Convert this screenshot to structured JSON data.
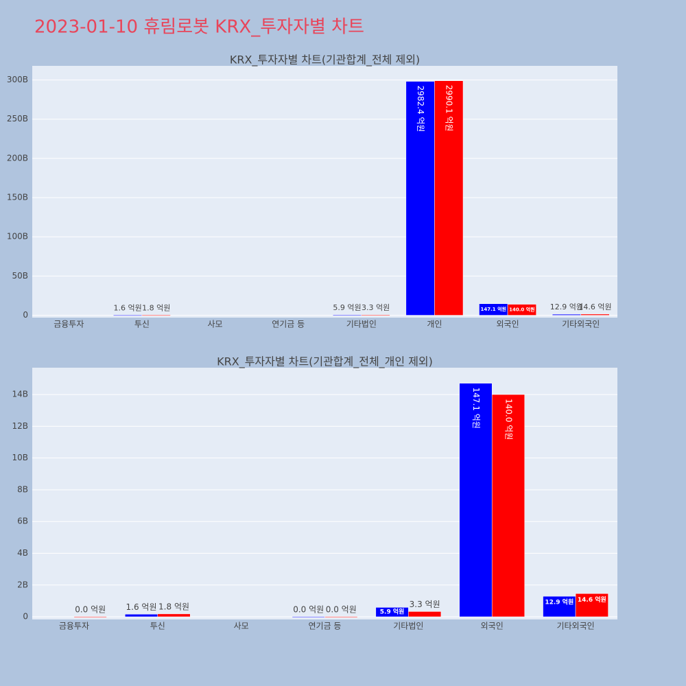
{
  "title": "2023-01-10 휴림로봇 KRX_투자자별 차트",
  "chart_data": [
    {
      "type": "bar",
      "title": "KRX_투자자별 차트(기관합계_전체 제외)",
      "categories": [
        "금융투자",
        "투신",
        "사모",
        "연기금 등",
        "기타법인",
        "개인",
        "외국인",
        "기타외국인"
      ],
      "series": [
        {
          "color": "#0000ff",
          "values": [
            null,
            160000000,
            null,
            null,
            590000000,
            298240000000,
            14710000000,
            1290000000
          ],
          "value_labels": [
            null,
            "1.6 억원",
            null,
            null,
            "5.9 억원",
            "2982.4 억원",
            "147.1 억원",
            "12.9 억원"
          ]
        },
        {
          "color": "#ff0000",
          "values": [
            null,
            180000000,
            null,
            null,
            330000000,
            299010000000,
            14000000000,
            1460000000
          ],
          "value_labels": [
            null,
            "1.8 억원",
            null,
            null,
            "3.3 억원",
            "2990.1 억원",
            "140.0 억원",
            "14.6 억원"
          ]
        }
      ],
      "ylim": [
        -3000000000,
        318000000000
      ],
      "yticks": [
        0,
        {
          "value": 50000000000,
          "label": "50B"
        },
        {
          "value": 100000000000,
          "label": "100B"
        },
        {
          "value": 150000000000,
          "label": "150B"
        },
        {
          "value": 200000000000,
          "label": "200B"
        },
        {
          "value": 250000000000,
          "label": "250B"
        },
        {
          "value": 300000000000,
          "label": "300B"
        }
      ],
      "grid": true
    },
    {
      "type": "bar",
      "title": "KRX_투자자별 차트(기관합계_전체_개인 제외)",
      "categories": [
        "금융투자",
        "투신",
        "사모",
        "연기금 등",
        "기타법인",
        "외국인",
        "기타외국인"
      ],
      "series": [
        {
          "color": "#0000ff",
          "values": [
            null,
            160000000,
            null,
            0,
            590000000,
            14710000000,
            1290000000
          ],
          "value_labels": [
            null,
            "1.6 억원",
            null,
            "0.0 억원",
            "5.9 억원",
            "147.1 억원",
            "12.9 억원"
          ]
        },
        {
          "color": "#ff0000",
          "values": [
            0,
            180000000,
            null,
            0,
            330000000,
            14000000000,
            1460000000
          ],
          "value_labels": [
            "0.0 억원",
            "1.8 억원",
            null,
            "0.0 억원",
            "3.3 억원",
            "140.0 억원",
            "14.6 억원"
          ]
        }
      ],
      "ylim": [
        -170000000,
        15690000000
      ],
      "yticks": [
        0,
        {
          "value": 2000000000,
          "label": "2B"
        },
        {
          "value": 4000000000,
          "label": "4B"
        },
        {
          "value": 6000000000,
          "label": "6B"
        },
        {
          "value": 8000000000,
          "label": "8B"
        },
        {
          "value": 10000000000,
          "label": "10B"
        },
        {
          "value": 12000000000,
          "label": "12B"
        },
        {
          "value": 14000000000,
          "label": "14B"
        }
      ],
      "grid": true
    }
  ]
}
